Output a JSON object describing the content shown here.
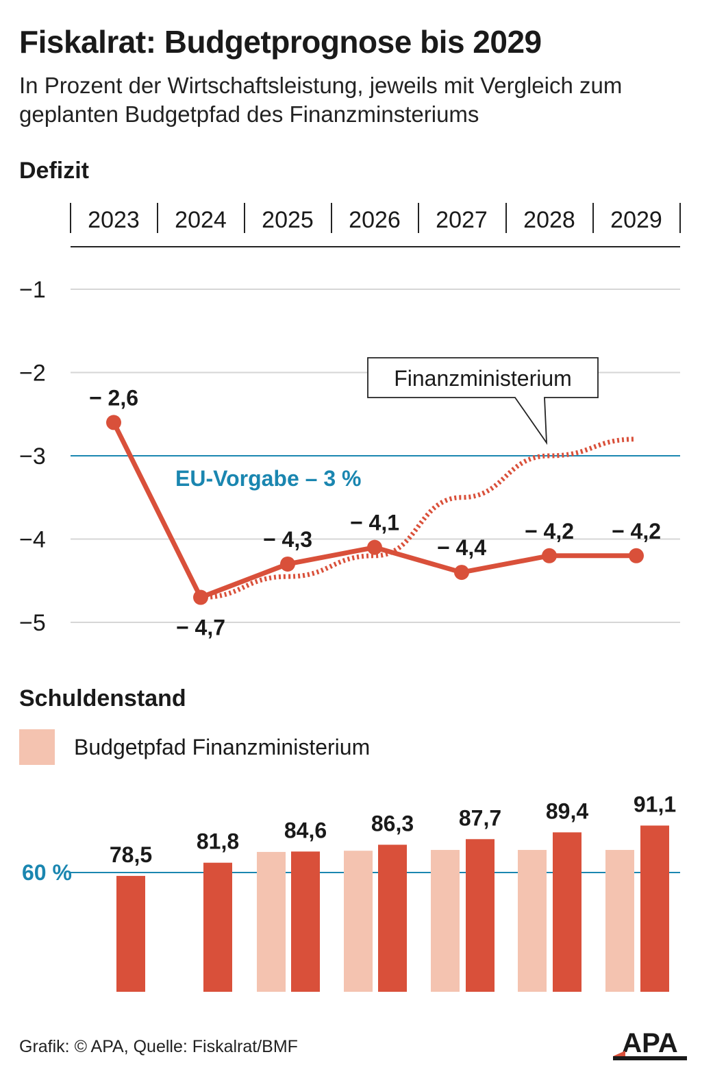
{
  "title": "Fiskalrat: Budgetprognose bis 2029",
  "subtitle": "In Prozent der Wirtschaftsleistung, jeweils mit Vergleich zum geplanten Budgetpfad des Finanzminsteriums",
  "colors": {
    "fiskalrat": "#d9503a",
    "budgetpfad": "#f4c3b0",
    "reference": "#1a86b0",
    "text": "#1a1a1a"
  },
  "chart_data": [
    {
      "type": "line",
      "title": "Defizit",
      "x": [
        "2023",
        "2024",
        "2025",
        "2026",
        "2027",
        "2028",
        "2029"
      ],
      "ylim": [
        -5.2,
        -0.8
      ],
      "yticks": [
        -1,
        -2,
        -3,
        -4,
        -5
      ],
      "ytick_labels": [
        "−1",
        "−2",
        "−3",
        "−4",
        "−5"
      ],
      "grid": true,
      "series": [
        {
          "style": "solid",
          "values": [
            -2.6,
            -4.7,
            -4.3,
            -4.1,
            -4.4,
            -4.2,
            -4.2
          ],
          "labels": [
            "− 2,6",
            "− 4,7",
            "− 4,3",
            "− 4,1",
            "− 4,4",
            "− 4,2",
            "− 4,2"
          ]
        },
        {
          "name": "Finanzministerium",
          "style": "dotted",
          "x": [
            "2024",
            "2025",
            "2026",
            "2027",
            "2028",
            "2029"
          ],
          "values": [
            -4.7,
            -4.45,
            -4.2,
            -3.5,
            -3.0,
            -2.8
          ]
        }
      ],
      "reference_line": {
        "value": -3,
        "label": "EU-Vorgabe – 3 %"
      }
    },
    {
      "type": "bar",
      "title": "Schuldenstand",
      "categories": [
        "2023",
        "2024",
        "2025",
        "2026",
        "2027",
        "2028",
        "2029"
      ],
      "series": [
        {
          "name": "Budgetpfad Finanzministerium",
          "values": [
            null,
            null,
            84.5,
            84.8,
            85.0,
            85.0,
            85.0
          ]
        },
        {
          "values": [
            78.5,
            81.8,
            84.6,
            86.3,
            87.7,
            89.4,
            91.1
          ],
          "labels": [
            "78,5",
            "81,8",
            "84,6",
            "86,3",
            "87,7",
            "89,4",
            "91,1"
          ]
        }
      ],
      "reference_line": {
        "value": 60,
        "label": "60 %"
      },
      "legend": "top-left"
    }
  ],
  "footer": "Grafik: © APA, Quelle: Fiskalrat/BMF",
  "logo_text": "APA"
}
